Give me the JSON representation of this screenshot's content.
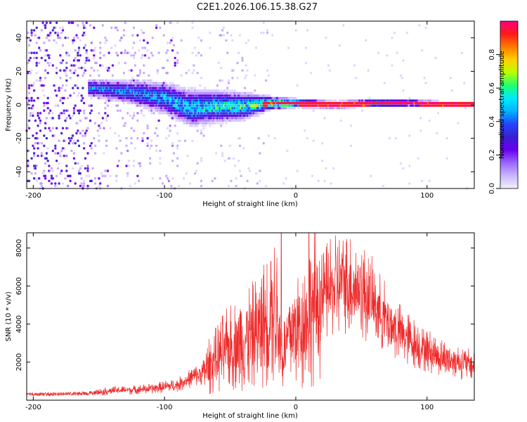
{
  "title": "C2E1.2026.106.15.38.G27",
  "colors": {
    "line": "#ee2b2b",
    "spectrum": [
      "#f4f0ff",
      "#c9b6ff",
      "#9a66ff",
      "#6a00ee",
      "#3a1fd0",
      "#2244ff",
      "#00b4ff",
      "#00e8ff",
      "#20ff70",
      "#b8ff00",
      "#ffd000",
      "#ff7a00",
      "#ff1a1a",
      "#ff007f"
    ]
  },
  "chart_data": [
    {
      "type": "heatmap",
      "name": "spectrogram",
      "title": "C2E1.2026.106.15.38.G27",
      "xlabel": "Height of straight line (km)",
      "ylabel": "Frequency (Hz)",
      "xlim": [
        -205,
        136
      ],
      "ylim": [
        -50,
        50
      ],
      "xticks": [
        {
          "value": -200,
          "label": "-200"
        },
        {
          "value": -100,
          "label": "-100"
        },
        {
          "value": 0,
          "label": "0"
        },
        {
          "value": 100,
          "label": "100"
        }
      ],
      "yticks": [
        {
          "value": -40,
          "label": "-40"
        },
        {
          "value": -20,
          "label": "-20"
        },
        {
          "value": 0,
          "label": "0"
        },
        {
          "value": 20,
          "label": "20"
        },
        {
          "value": 40,
          "label": "40"
        }
      ],
      "colorbar": {
        "label": "Normalized spectral amplitude",
        "range": [
          0,
          1
        ],
        "ticks": [
          {
            "value": 0.0,
            "label": "0.0"
          },
          {
            "value": 0.2,
            "label": "0.2"
          },
          {
            "value": 0.4,
            "label": "0.4"
          },
          {
            "value": 0.6,
            "label": "0.6"
          },
          {
            "value": 0.8,
            "label": "0.8"
          }
        ]
      },
      "ridge_profile": [
        {
          "x": -155,
          "center": 10,
          "spread": 4,
          "amp": 0.45
        },
        {
          "x": -130,
          "center": 8,
          "spread": 5,
          "amp": 0.45
        },
        {
          "x": -100,
          "center": 4,
          "spread": 7,
          "amp": 0.5
        },
        {
          "x": -80,
          "center": -2,
          "spread": 8,
          "amp": 0.55
        },
        {
          "x": -60,
          "center": -1,
          "spread": 7,
          "amp": 0.6
        },
        {
          "x": -40,
          "center": -1,
          "spread": 6,
          "amp": 0.6
        },
        {
          "x": -20,
          "center": 1,
          "spread": 3,
          "amp": 0.75
        },
        {
          "x": 0,
          "center": 1,
          "spread": 1.8,
          "amp": 0.95
        },
        {
          "x": 30,
          "center": 0,
          "spread": 1.5,
          "amp": 1.0
        },
        {
          "x": 60,
          "center": 1,
          "spread": 1.5,
          "amp": 1.0
        },
        {
          "x": 90,
          "center": 1,
          "spread": 1.3,
          "amp": 1.0
        },
        {
          "x": 135,
          "center": 0,
          "spread": 1.0,
          "amp": 1.0
        }
      ]
    },
    {
      "type": "line",
      "name": "snr",
      "xlabel": "Height of straight line (km)",
      "ylabel": "SNR (10 * v/v)",
      "xlim": [
        -205,
        136
      ],
      "ylim": [
        0,
        8800
      ],
      "xticks": [
        {
          "value": -200,
          "label": "-200"
        },
        {
          "value": -100,
          "label": "-100"
        },
        {
          "value": 0,
          "label": "0"
        },
        {
          "value": 100,
          "label": "100"
        }
      ],
      "yticks": [
        {
          "value": 2000,
          "label": "2000"
        },
        {
          "value": 4000,
          "label": "4000"
        },
        {
          "value": 6000,
          "label": "6000"
        },
        {
          "value": 8000,
          "label": "8000"
        }
      ],
      "envelope": [
        {
          "x": -205,
          "y": 300
        },
        {
          "x": -160,
          "y": 350
        },
        {
          "x": -140,
          "y": 500
        },
        {
          "x": -110,
          "y": 600
        },
        {
          "x": -90,
          "y": 800
        },
        {
          "x": -70,
          "y": 1500
        },
        {
          "x": -55,
          "y": 2500
        },
        {
          "x": -40,
          "y": 3200
        },
        {
          "x": -30,
          "y": 3500
        },
        {
          "x": -22,
          "y": 4200
        },
        {
          "x": -15,
          "y": 4800
        },
        {
          "x": -10,
          "y": 2200
        },
        {
          "x": -5,
          "y": 3500
        },
        {
          "x": 5,
          "y": 4000
        },
        {
          "x": 15,
          "y": 5000
        },
        {
          "x": 25,
          "y": 5800
        },
        {
          "x": 35,
          "y": 6200
        },
        {
          "x": 45,
          "y": 6000
        },
        {
          "x": 55,
          "y": 5500
        },
        {
          "x": 65,
          "y": 4600
        },
        {
          "x": 75,
          "y": 3800
        },
        {
          "x": 85,
          "y": 3200
        },
        {
          "x": 95,
          "y": 2800
        },
        {
          "x": 110,
          "y": 2300
        },
        {
          "x": 125,
          "y": 2000
        },
        {
          "x": 136,
          "y": 1800
        }
      ],
      "spikes": [
        {
          "x": -19,
          "y": 7300
        },
        {
          "x": -11,
          "y": 8800
        },
        {
          "x": 10,
          "y": 8800
        }
      ]
    }
  ]
}
